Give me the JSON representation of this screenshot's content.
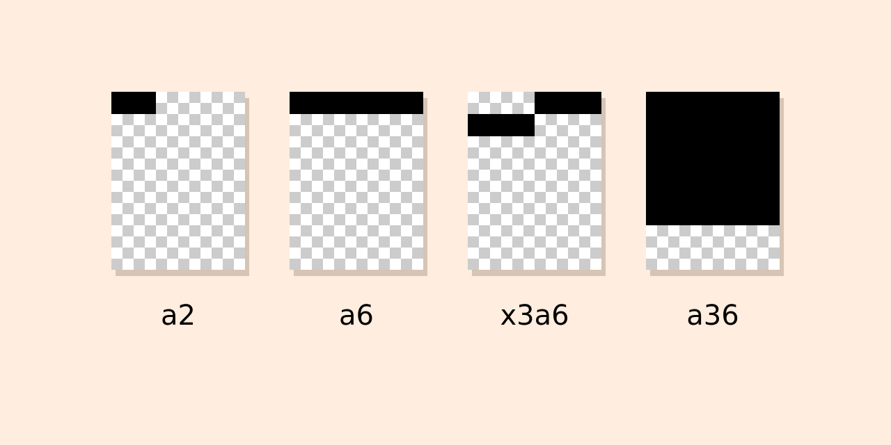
{
  "grid": {
    "columns": 6,
    "rows": 8,
    "fill_color": "#000000",
    "checker_light": "#ffffff",
    "checker_dark": "#cccccc",
    "background_color": "#ffeddf",
    "shadow_color": "#d6c4b4"
  },
  "panels": [
    {
      "label": "a2",
      "filled_cells": [
        [
          0,
          0
        ],
        [
          1,
          0
        ]
      ]
    },
    {
      "label": "a6",
      "filled_cells": [
        [
          0,
          0
        ],
        [
          1,
          0
        ],
        [
          2,
          0
        ],
        [
          3,
          0
        ],
        [
          4,
          0
        ],
        [
          5,
          0
        ]
      ]
    },
    {
      "label": "x3a6",
      "filled_cells": [
        [
          3,
          0
        ],
        [
          4,
          0
        ],
        [
          5,
          0
        ],
        [
          0,
          1
        ],
        [
          1,
          1
        ],
        [
          2,
          1
        ]
      ]
    },
    {
      "label": "a36",
      "filled_cells": [
        [
          0,
          0
        ],
        [
          1,
          0
        ],
        [
          2,
          0
        ],
        [
          3,
          0
        ],
        [
          4,
          0
        ],
        [
          5,
          0
        ],
        [
          0,
          1
        ],
        [
          1,
          1
        ],
        [
          2,
          1
        ],
        [
          3,
          1
        ],
        [
          4,
          1
        ],
        [
          5,
          1
        ],
        [
          0,
          2
        ],
        [
          1,
          2
        ],
        [
          2,
          2
        ],
        [
          3,
          2
        ],
        [
          4,
          2
        ],
        [
          5,
          2
        ],
        [
          0,
          3
        ],
        [
          1,
          3
        ],
        [
          2,
          3
        ],
        [
          3,
          3
        ],
        [
          4,
          3
        ],
        [
          5,
          3
        ],
        [
          0,
          4
        ],
        [
          1,
          4
        ],
        [
          2,
          4
        ],
        [
          3,
          4
        ],
        [
          4,
          4
        ],
        [
          5,
          4
        ],
        [
          0,
          5
        ],
        [
          1,
          5
        ],
        [
          2,
          5
        ],
        [
          3,
          5
        ],
        [
          4,
          5
        ],
        [
          5,
          5
        ]
      ]
    }
  ]
}
